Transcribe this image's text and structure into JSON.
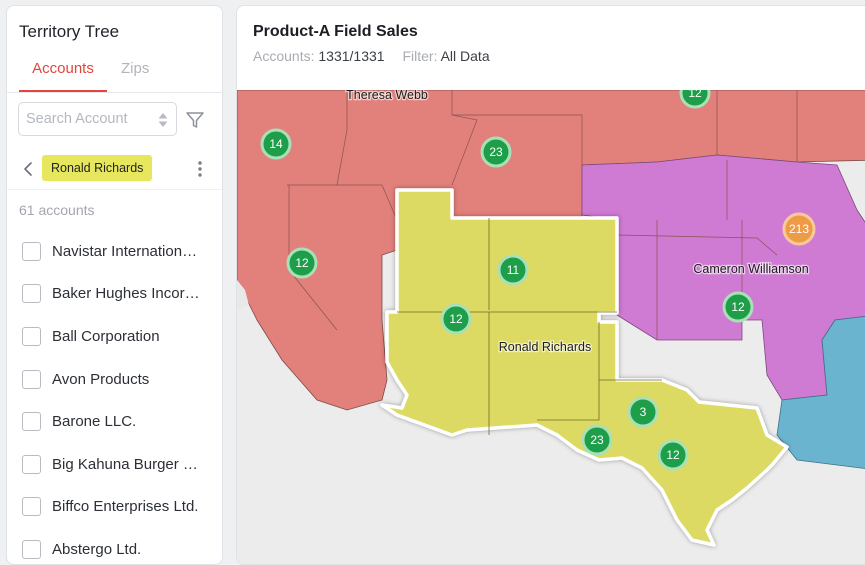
{
  "sidebar": {
    "title": "Territory Tree",
    "tabs": [
      {
        "label": "Accounts",
        "active": true
      },
      {
        "label": "Zips",
        "active": false
      }
    ],
    "search": {
      "placeholder": "Search Account",
      "value": ""
    },
    "breadcrumb": {
      "label": "Ronald Richards"
    },
    "count_text": "61 accounts",
    "accounts": [
      "Navistar International Corporation",
      "Baker Hughes Incorporated",
      "Ball Corporation",
      "Avon Products",
      "Barone LLC.",
      "Big Kahuna Burger Ltd.",
      "Biffco Enterprises Ltd.",
      "Abstergo Ltd."
    ]
  },
  "main": {
    "title": "Product-A Field Sales",
    "accounts_label": "Accounts:",
    "accounts_value": "1331/1331",
    "filter_label": "Filter:",
    "filter_value": "All Data"
  },
  "map": {
    "region_labels": [
      "Theresa Webb",
      "Cameron Williamson",
      "Ronald Richards"
    ],
    "clusters": [
      "12",
      "14",
      "23",
      "213",
      "12",
      "11",
      "12",
      "12",
      "3",
      "23",
      "12"
    ],
    "colors": {
      "red_region": "#e2807b",
      "purple_region": "#cf7ad3",
      "yellow_region": "#dcda62",
      "blue_region": "#6ab4d0",
      "cluster_green": "#1f9e4a",
      "cluster_orange": "#ef9a45",
      "accent": "#e0463c",
      "chip_yellow": "#e6e75c"
    }
  }
}
